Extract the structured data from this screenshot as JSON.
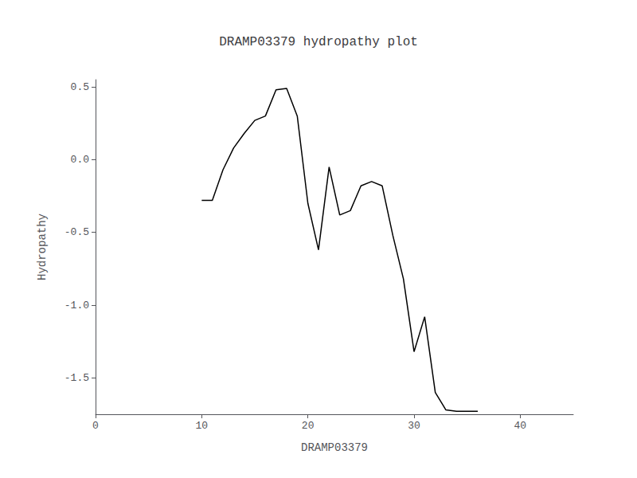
{
  "chart_data": {
    "type": "line",
    "title": "DRAMP03379 hydropathy plot",
    "xlabel": "DRAMP03379",
    "ylabel": "Hydropathy",
    "x": [
      10,
      11,
      12,
      13,
      14,
      15,
      16,
      17,
      18,
      19,
      20,
      21,
      22,
      23,
      24,
      25,
      26,
      27,
      28,
      29,
      30,
      31,
      32,
      33,
      34,
      35,
      36
    ],
    "values": [
      -0.28,
      -0.28,
      -0.07,
      0.08,
      0.18,
      0.27,
      0.3,
      0.48,
      0.49,
      0.3,
      -0.3,
      -0.62,
      -0.05,
      -0.38,
      -0.35,
      -0.18,
      -0.15,
      -0.18,
      -0.52,
      -0.82,
      -1.32,
      -1.08,
      -1.6,
      -1.72,
      -1.73,
      -1.73,
      -1.73
    ],
    "color": "#000000",
    "xlim": [
      0,
      45
    ],
    "xticks": [
      0,
      10,
      20,
      30,
      40
    ],
    "ylim": [
      -1.75,
      0.55
    ],
    "yticks": [
      0.5,
      {
        "value": 0.0,
        "label": "0.0"
      },
      -0.5,
      {
        "value": -1.0,
        "label": "-1.0"
      },
      -1.5
    ],
    "grid": false
  }
}
